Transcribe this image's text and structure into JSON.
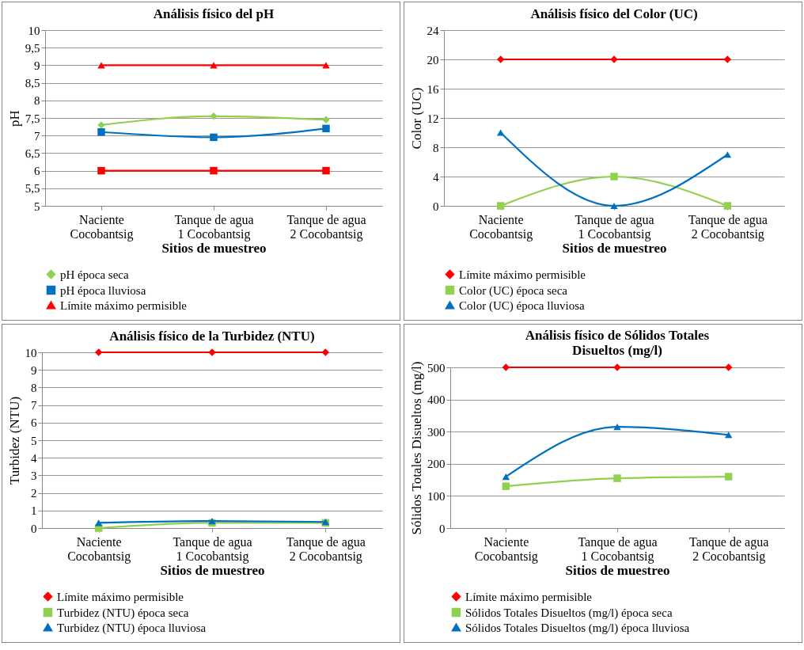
{
  "chart_data": [
    {
      "type": "line",
      "title": "Análisis físico del pH",
      "xlabel": "Sitios de muestreo",
      "ylabel": "pH",
      "categories": [
        "Naciente Cocobantsig",
        "Tanque de agua 1 Cocobantsig",
        "Tanque de agua 2 Cocobantsig"
      ],
      "series": [
        {
          "name": "pH  época seca",
          "color": "#92d050",
          "marker": "diamond",
          "values": [
            7.3,
            7.55,
            7.45
          ]
        },
        {
          "name": "pH época lluviosa",
          "color": "#0070c0",
          "marker": "square",
          "values": [
            7.1,
            6.95,
            7.2
          ]
        },
        {
          "name": "Límite máximo permisible",
          "color": "#ff0000",
          "marker": "triangle",
          "values": [
            9,
            9,
            9
          ]
        },
        {
          "color": "#ff0000",
          "marker": "square",
          "values": [
            6,
            6,
            6
          ]
        }
      ],
      "ylim": [
        5,
        10
      ],
      "yticks": [
        5,
        {
          "value": 5.5,
          "label": "5,5"
        },
        6,
        {
          "value": 6.5,
          "label": "6,5"
        },
        7,
        {
          "value": 7.5,
          "label": "7,5"
        },
        8,
        {
          "value": 8.5,
          "label": "8,5"
        },
        9,
        {
          "value": 9.5,
          "label": "9,5"
        },
        10
      ],
      "grid": "y",
      "legend": "bottom"
    },
    {
      "type": "line",
      "title": "Análisis físico del Color (UC)",
      "xlabel": "Sitios de muestreo",
      "ylabel": "Color (UC)",
      "categories": [
        "Naciente Cocobantsig",
        "Tanque de agua 1 Cocobantsig",
        "Tanque de agua 2 Cocobantsig"
      ],
      "series": [
        {
          "name": "Límite máximo permisible",
          "color": "#ff0000",
          "marker": "diamond",
          "values": [
            20,
            20,
            20
          ]
        },
        {
          "name": "Color (UC) época seca",
          "color": "#92d050",
          "marker": "square",
          "values": [
            0,
            4,
            0
          ]
        },
        {
          "name": "Color (UC) época lluviosa",
          "color": "#0070c0",
          "marker": "triangle",
          "values": [
            10,
            0,
            7
          ]
        }
      ],
      "ylim": [
        0,
        24
      ],
      "yticks": [
        0,
        4,
        8,
        12,
        16,
        20,
        24
      ],
      "grid": "y",
      "legend": "bottom"
    },
    {
      "type": "line",
      "title": "Análisis físico de la Turbidez (NTU)",
      "xlabel": "Sitios de muestreo",
      "ylabel": "Turbidez (NTU)",
      "categories": [
        "Naciente Cocobantsig",
        "Tanque de agua 1 Cocobantsig",
        "Tanque de agua 2 Cocobantsig"
      ],
      "series": [
        {
          "name": "Límite máximo permisible",
          "color": "#ff0000",
          "marker": "diamond",
          "values": [
            10,
            10,
            10
          ]
        },
        {
          "name": "Turbidez (NTU) época seca",
          "color": "#92d050",
          "marker": "square",
          "values": [
            0,
            0.3,
            0.3
          ]
        },
        {
          "name": "Turbidez (NTU) época lluviosa",
          "color": "#0070c0",
          "marker": "triangle",
          "values": [
            0.3,
            0.4,
            0.35
          ]
        }
      ],
      "ylim": [
        0,
        10
      ],
      "yticks": [
        0,
        1,
        2,
        3,
        4,
        5,
        6,
        7,
        8,
        9,
        10
      ],
      "grid": "y",
      "legend": "bottom"
    },
    {
      "type": "line",
      "title": "Análisis físico de Sólidos Totales Disueltos (mg/l)",
      "xlabel": "Sitios de muestreo",
      "ylabel": "Sólidos Totales Disueltos (mg/l)",
      "categories": [
        "Naciente Cocobantsig",
        "Tanque de agua 1 Cocobantsig",
        "Tanque de agua 2 Cocobantsig"
      ],
      "series": [
        {
          "name": "Límite máximo permisible",
          "color": "#ff0000",
          "marker": "diamond",
          "values": [
            500,
            500,
            500
          ]
        },
        {
          "name": "Sólidos Totales Disueltos (mg/l) época seca",
          "color": "#92d050",
          "marker": "square",
          "values": [
            130,
            155,
            160
          ]
        },
        {
          "name": "Sólidos Totales Disueltos (mg/l) época lluviosa",
          "color": "#0070c0",
          "marker": "triangle",
          "values": [
            160,
            315,
            290
          ]
        }
      ],
      "ylim": [
        0,
        500
      ],
      "yticks": [
        0,
        100,
        200,
        300,
        400,
        500
      ],
      "grid": "y",
      "legend": "bottom"
    }
  ]
}
